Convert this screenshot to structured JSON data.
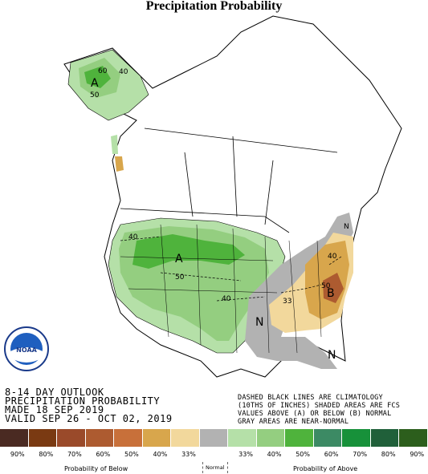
{
  "title": "Precipitation Probability",
  "outlook": {
    "line1": "8-14 DAY OUTLOOK",
    "line2": "PRECIPITATION PROBABILITY",
    "line3": "MADE  18 SEP 2019",
    "line4": "VALID  SEP 26 - OCT 02, 2019"
  },
  "note": {
    "line1": "DASHED BLACK LINES ARE CLIMATOLOGY",
    "line2": "(10THS OF INCHES) SHADED AREAS ARE FCS",
    "line3": "VALUES ABOVE (A) OR BELOW (B) NORMAL",
    "line4": "GRAY AREAS ARE NEAR-NORMAL"
  },
  "map_labels": {
    "alaska_A": "A",
    "alaska_40": "40",
    "alaska_50": "50",
    "alaska_60": "60",
    "west_A": "A",
    "west_40": "40",
    "west_50": "50",
    "plains_40": "40",
    "east_B": "B",
    "east_33": "33",
    "east_40": "40",
    "east_50": "50",
    "southeast_N": "N",
    "florida_N": "N",
    "ne_N": "N"
  },
  "legend": {
    "colors": [
      "#4a2a22",
      "#7a3a12",
      "#9a4a2a",
      "#ad5b30",
      "#c8703a",
      "#d8a64c",
      "#f2d89c",
      "#b2b2b2",
      "#b5e0a8",
      "#94ce80",
      "#4fb33c",
      "#3c8a64",
      "#17913a",
      "#20603a",
      "#2c5e1c"
    ],
    "labels_below": [
      "90%",
      "80%",
      "70%",
      "60%",
      "50%",
      "40%",
      "33%"
    ],
    "labels_above": [
      "33%",
      "40%",
      "50%",
      "60%",
      "70%",
      "80%",
      "90%"
    ],
    "caption_below": "Probability of Below",
    "caption_normal": "Normal",
    "caption_above": "Probability of Above"
  },
  "logo_text": "NOAA"
}
